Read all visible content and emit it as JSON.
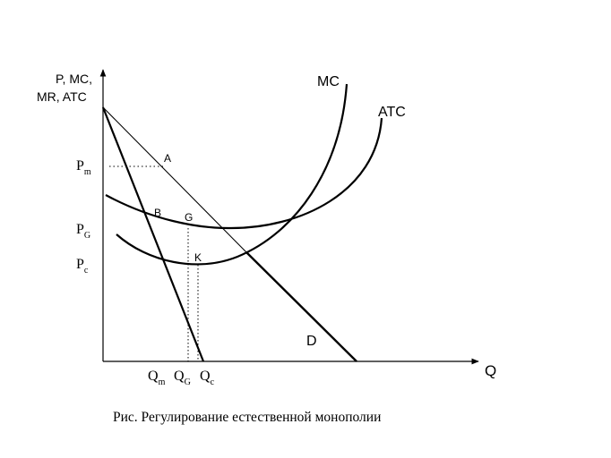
{
  "axes": {
    "y_label_line1": "P, MC,",
    "y_label_line2": "MR, ATC",
    "x_label": "Q"
  },
  "curves": {
    "mc": "MC",
    "atc": "ATC",
    "demand": "D"
  },
  "points": {
    "a": "A",
    "b": "B",
    "g": "G",
    "k": "K"
  },
  "price_levels": {
    "pm_main": "P",
    "pm_sub": "m",
    "pg_main": "P",
    "pg_sub": "G",
    "pc_main": "P",
    "pc_sub": "c"
  },
  "quantity_levels": {
    "qm_main": "Q",
    "qm_sub": "m",
    "qg_main": "Q",
    "qg_sub": "G",
    "qc_main": "Q",
    "qc_sub": "c"
  },
  "caption": "Рис. Регулирование естественной монополии"
}
